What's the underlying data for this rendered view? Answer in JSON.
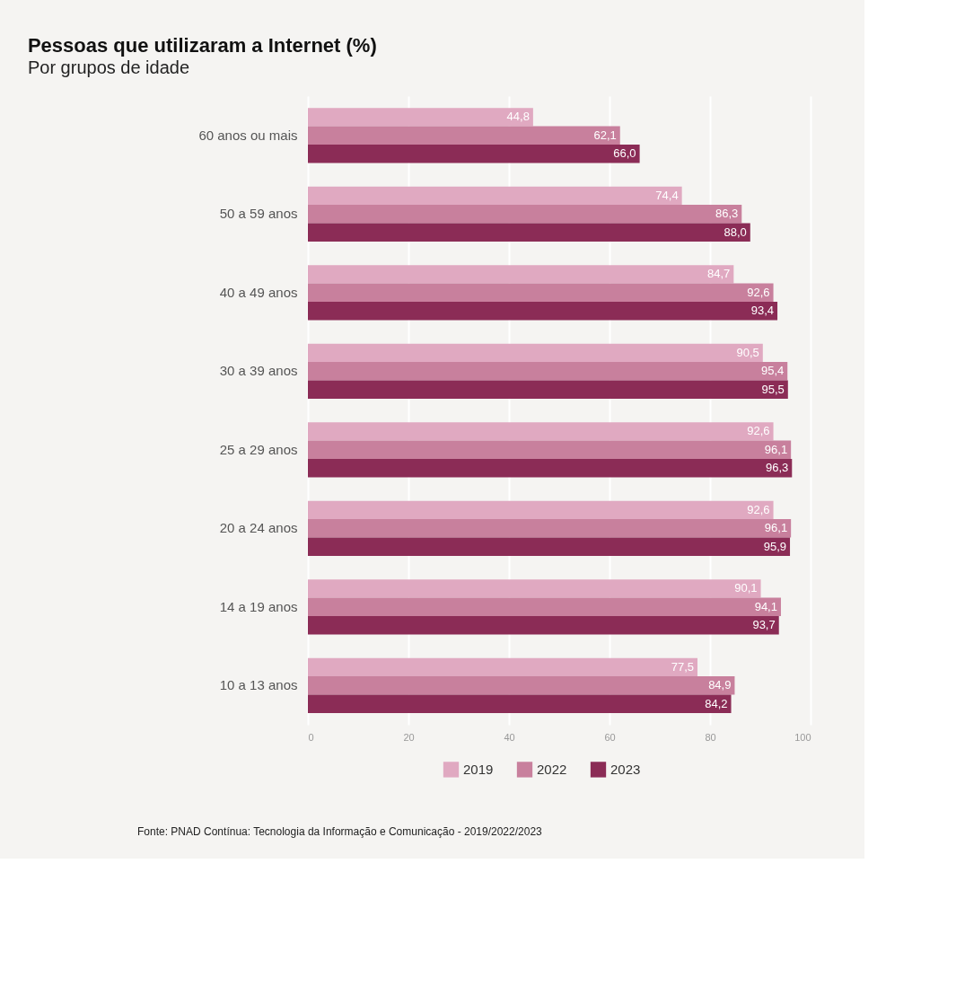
{
  "chart_data": {
    "type": "bar",
    "orientation": "horizontal",
    "title": "Pessoas que utilizaram a Internet (%)",
    "subtitle": "Por grupos de idade",
    "categories": [
      "60 anos ou mais",
      "50 a 59 anos",
      "40 a 49 anos",
      "30 a 39 anos",
      "25 a 29 anos",
      "20 a 24 anos",
      "14 a 19 anos",
      "10 a 13 anos"
    ],
    "series": [
      {
        "name": "2019",
        "color": "#e0a9c1",
        "values": [
          44.8,
          74.4,
          84.7,
          90.5,
          92.6,
          92.6,
          90.1,
          77.5
        ],
        "value_labels": [
          "44,8",
          "74,4",
          "84,7",
          "90,5",
          "92,6",
          "92,6",
          "90,1",
          "77,5"
        ]
      },
      {
        "name": "2022",
        "color": "#c8809d",
        "values": [
          62.1,
          86.3,
          92.6,
          95.4,
          96.1,
          96.1,
          94.1,
          84.9
        ],
        "value_labels": [
          "62,1",
          "86,3",
          "92,6",
          "95,4",
          "96,1",
          "96,1",
          "94,1",
          "84,9"
        ]
      },
      {
        "name": "2023",
        "color": "#8b2c56",
        "values": [
          66.0,
          88.0,
          93.4,
          95.5,
          96.3,
          95.9,
          93.7,
          84.2
        ],
        "value_labels": [
          "66,0",
          "88,0",
          "93,4",
          "95,5",
          "96,3",
          "95,9",
          "93,7",
          "84,2"
        ]
      }
    ],
    "xlim": [
      0,
      100
    ],
    "xticks": [
      0,
      20,
      40,
      60,
      80,
      100
    ],
    "grid": "x",
    "legend": "bottom",
    "annotations": [
      "Fonte: PNAD Contínua: Tecnologia da Informação e Comunicação - 2019/2022/2023"
    ]
  }
}
